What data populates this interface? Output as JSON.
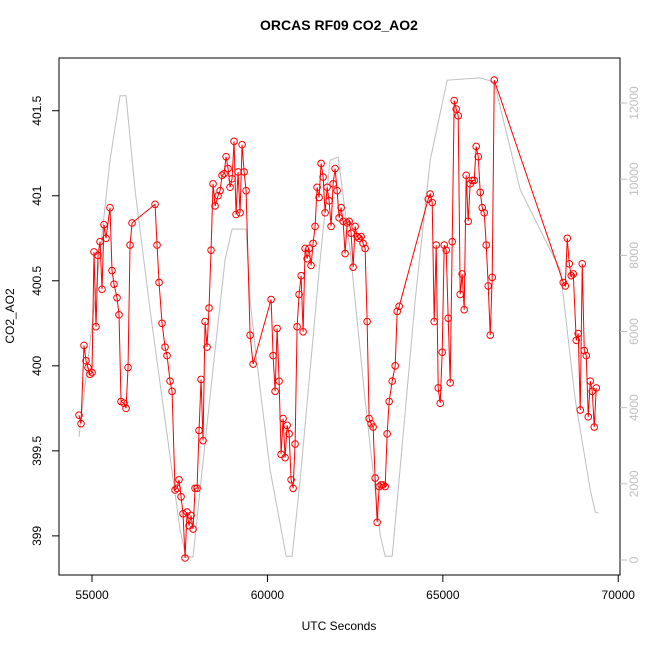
{
  "chart_data": {
    "type": "line",
    "title": "ORCAS RF09 CO2_AO2",
    "x_label": "UTC Seconds",
    "y_label": "CO2_AO2",
    "xlim": [
      54059,
      70050
    ],
    "xticks": [
      55000,
      60000,
      65000,
      70000
    ],
    "ylim": [
      398.77,
      401.81
    ],
    "yticks": [
      399.0,
      399.5,
      400.0,
      400.5,
      401.0,
      401.5
    ],
    "y2lim": [
      -394,
      13182
    ],
    "y2ticks": [
      0,
      2000,
      4000,
      6000,
      8000,
      10000,
      12000
    ],
    "series": [
      {
        "color": "#bebebe",
        "axis": "y2",
        "markers": false,
        "x": [
          54629,
          55085,
          55513,
          55799,
          55970,
          56226,
          56654,
          57082,
          57510,
          57680,
          57880,
          58079,
          58507,
          58792,
          58992,
          59392,
          59506,
          59677,
          60077,
          60447,
          60532,
          60704,
          60932,
          61502,
          61787,
          62015,
          62357,
          62785,
          63213,
          63356,
          63556,
          63728,
          64212,
          64640,
          65124,
          66066,
          66465,
          67207,
          68347,
          68775,
          69202,
          69345,
          69430
        ],
        "values": [
          3230,
          6830,
          10500,
          12190,
          12190,
          9720,
          6570,
          3680,
          790,
          80,
          80,
          1840,
          5510,
          7880,
          8690,
          8690,
          6830,
          5360,
          2360,
          530,
          100,
          100,
          2100,
          7880,
          10500,
          10580,
          8140,
          4200,
          660,
          100,
          100,
          1840,
          6830,
          10500,
          12600,
          12660,
          12550,
          9720,
          7620,
          4200,
          1840,
          1260,
          1230
        ]
      },
      {
        "color": "#ff0000",
        "markers": true,
        "x": [
          54629,
          54686,
          54772,
          54829,
          54886,
          54943,
          55000,
          55057,
          55114,
          55171,
          55228,
          55285,
          55342,
          55399,
          55513,
          55570,
          55627,
          55713,
          55770,
          55827,
          55912,
          55970,
          56027,
          56084,
          56141,
          56797,
          56854,
          56911,
          56996,
          57082,
          57139,
          57225,
          57282,
          57367,
          57424,
          57481,
          57538,
          57595,
          57652,
          57709,
          57766,
          57823,
          57880,
          57937,
          57994,
          58051,
          58108,
          58165,
          58222,
          58279,
          58336,
          58393,
          58450,
          58507,
          58593,
          58650,
          58707,
          58764,
          58821,
          58878,
          58935,
          58992,
          59049,
          59106,
          59163,
          59220,
          59278,
          59335,
          59392,
          59506,
          59591,
          60105,
          60162,
          60219,
          60276,
          60333,
          60390,
          60447,
          60504,
          60561,
          60618,
          60675,
          60732,
          60789,
          60846,
          60903,
          60960,
          61017,
          61074,
          61131,
          61188,
          61245,
          61302,
          61359,
          61416,
          61473,
          61530,
          61587,
          61644,
          61701,
          61758,
          61815,
          61872,
          61929,
          61986,
          62043,
          62100,
          62157,
          62214,
          62272,
          62329,
          62386,
          62443,
          62500,
          62557,
          62614,
          62671,
          62728,
          62785,
          62842,
          62899,
          62956,
          63013,
          63070,
          63128,
          63185,
          63242,
          63299,
          63356,
          63413,
          63470,
          63556,
          63642,
          63699,
          63756,
          64583,
          64640,
          64697,
          64754,
          64811,
          64868,
          64925,
          64982,
          65039,
          65096,
          65153,
          65210,
          65267,
          65324,
          65381,
          65438,
          65495,
          65552,
          65609,
          65666,
          65723,
          65780,
          65837,
          65894,
          65951,
          66009,
          66066,
          66123,
          66180,
          66237,
          66294,
          66351,
          66408,
          66465,
          68433,
          68490,
          68547,
          68604,
          68661,
          68718,
          68803,
          68860,
          68917,
          68974,
          69031,
          69088,
          69145,
          69202,
          69259,
          69316,
          69373
        ],
        "values": [
          399.71,
          399.66,
          400.12,
          400.03,
          399.99,
          399.95,
          399.96,
          400.67,
          400.23,
          400.65,
          400.73,
          400.45,
          400.83,
          400.75,
          400.93,
          400.56,
          400.48,
          400.4,
          400.3,
          399.79,
          399.78,
          399.75,
          399.99,
          400.71,
          400.84,
          400.95,
          400.71,
          400.49,
          400.25,
          400.11,
          400.06,
          399.91,
          399.85,
          399.27,
          399.28,
          399.33,
          399.23,
          399.13,
          398.87,
          399.14,
          399.06,
          399.12,
          399.04,
          399.28,
          399.28,
          399.62,
          399.92,
          399.56,
          400.26,
          400.11,
          400.34,
          400.68,
          401.07,
          400.94,
          401.0,
          401.03,
          401.12,
          401.13,
          401.23,
          401.16,
          401.05,
          401.1,
          401.32,
          400.89,
          401.14,
          400.9,
          401.3,
          401.14,
          401.03,
          400.18,
          400.01,
          400.39,
          400.06,
          399.85,
          400.22,
          399.91,
          399.48,
          399.69,
          399.46,
          399.65,
          399.6,
          399.33,
          399.28,
          399.54,
          400.23,
          400.42,
          400.53,
          400.2,
          400.69,
          400.63,
          400.69,
          400.59,
          400.72,
          400.82,
          401.05,
          400.99,
          401.19,
          401.11,
          400.9,
          401.05,
          400.97,
          400.82,
          401.07,
          401.16,
          401.03,
          400.87,
          400.93,
          400.85,
          400.66,
          400.84,
          400.85,
          400.78,
          400.58,
          400.82,
          400.76,
          400.75,
          400.76,
          400.72,
          400.69,
          400.26,
          399.69,
          399.66,
          399.64,
          399.34,
          399.08,
          399.29,
          399.3,
          399.3,
          399.29,
          399.6,
          399.79,
          399.91,
          400.0,
          400.32,
          400.35,
          400.98,
          401.01,
          400.96,
          400.26,
          400.71,
          399.87,
          399.78,
          400.08,
          400.71,
          400.68,
          400.28,
          399.9,
          400.73,
          401.56,
          401.51,
          401.47,
          400.42,
          400.54,
          400.33,
          401.12,
          400.85,
          401.07,
          401.09,
          401.09,
          401.29,
          401.23,
          401.02,
          400.93,
          400.9,
          400.71,
          400.47,
          400.18,
          400.52,
          401.68,
          400.49,
          400.47,
          400.75,
          400.6,
          400.53,
          400.54,
          400.15,
          400.19,
          399.74,
          400.6,
          400.09,
          400.06,
          399.7,
          399.91,
          399.85,
          399.64,
          399.87
        ]
      }
    ]
  }
}
